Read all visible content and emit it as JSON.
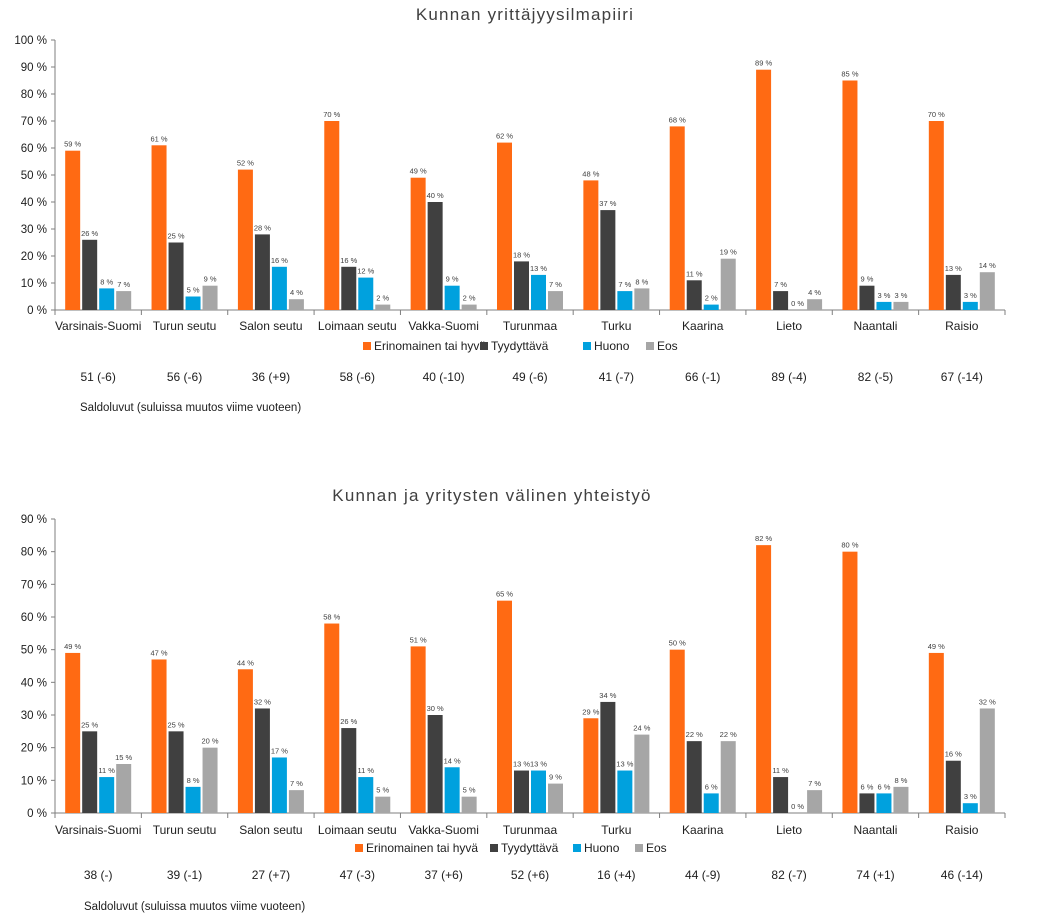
{
  "colors": {
    "series": [
      "#FF6A13",
      "#404040",
      "#00A1DE",
      "#A6A6A6"
    ],
    "axis": "#7F7F7F",
    "text": "#404040"
  },
  "chart_data": [
    {
      "type": "bar",
      "title": "Kunnan yrittäjyysilmapiiri",
      "categories": [
        "Varsinais-Suomi",
        "Turun seutu",
        "Salon seutu",
        "Loimaan seutu",
        "Vakka-Suomi",
        "Turunmaa",
        "Turku",
        "Kaarina",
        "Lieto",
        "Naantali",
        "Raisio"
      ],
      "series": [
        {
          "name": "Erinomainen tai hyvä",
          "values": [
            59,
            61,
            52,
            70,
            49,
            62,
            48,
            68,
            89,
            85,
            70
          ]
        },
        {
          "name": "Tyydyttävä",
          "values": [
            26,
            25,
            28,
            16,
            40,
            18,
            37,
            11,
            7,
            9,
            13
          ]
        },
        {
          "name": "Huono",
          "values": [
            8,
            5,
            16,
            12,
            9,
            13,
            7,
            2,
            0,
            3,
            3
          ]
        },
        {
          "name": "Eos",
          "values": [
            7,
            9,
            4,
            2,
            2,
            7,
            8,
            19,
            4,
            3,
            14
          ]
        }
      ],
      "ylim": [
        0,
        100
      ],
      "yticks": [
        "0 %",
        "10 %",
        "20 %",
        "30 %",
        "40 %",
        "50 %",
        "60 %",
        "70 %",
        "80 %",
        "90 %",
        "100 %"
      ],
      "data_label_suffix": " %",
      "legend_position": "bottom",
      "saldo": [
        "51 (-6)",
        "56 (-6)",
        "36 (+9)",
        "58 (-6)",
        "40 (-10)",
        "49 (-6)",
        "41 (-7)",
        "66 (-1)",
        "89 (-4)",
        "82 (-5)",
        "67 (-14)"
      ],
      "saldo_note": "Saldoluvut (suluissa muutos viime vuoteen)"
    },
    {
      "type": "bar",
      "title": "Kunnan ja yritysten välinen yhteistyö",
      "categories": [
        "Varsinais-Suomi",
        "Turun seutu",
        "Salon seutu",
        "Loimaan seutu",
        "Vakka-Suomi",
        "Turunmaa",
        "Turku",
        "Kaarina",
        "Lieto",
        "Naantali",
        "Raisio"
      ],
      "series": [
        {
          "name": "Erinomainen tai hyvä",
          "values": [
            49,
            47,
            44,
            58,
            51,
            65,
            29,
            50,
            82,
            80,
            49
          ]
        },
        {
          "name": "Tyydyttävä",
          "values": [
            25,
            25,
            32,
            26,
            30,
            13,
            34,
            22,
            11,
            6,
            16
          ]
        },
        {
          "name": "Huono",
          "values": [
            11,
            8,
            17,
            11,
            14,
            13,
            13,
            6,
            0,
            6,
            3
          ]
        },
        {
          "name": "Eos",
          "values": [
            15,
            20,
            7,
            5,
            5,
            9,
            24,
            22,
            7,
            8,
            32
          ]
        }
      ],
      "ylim": [
        0,
        90
      ],
      "yticks": [
        "0 %",
        "10 %",
        "20 %",
        "30 %",
        "40 %",
        "50 %",
        "60 %",
        "70 %",
        "80 %",
        "90 %"
      ],
      "data_label_suffix": " %",
      "legend_position": "bottom",
      "saldo": [
        "38 (-)",
        "39 (-1)",
        "27 (+7)",
        "47 (-3)",
        "37 (+6)",
        "52 (+6)",
        "16 (+4)",
        "44 (-9)",
        "82 (-7)",
        "74 (+1)",
        "46 (-14)"
      ],
      "saldo_note": "Saldoluvut (suluissa muutos viime vuoteen)"
    }
  ]
}
